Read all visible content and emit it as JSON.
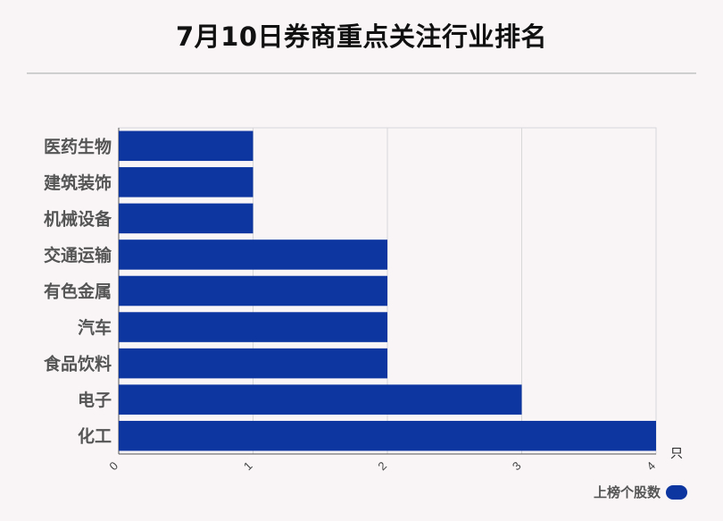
{
  "chart_data": {
    "type": "bar",
    "orientation": "horizontal",
    "title": "7月10日券商重点关注行业排名",
    "categories": [
      "医药生物",
      "建筑装饰",
      "机械设备",
      "交通运输",
      "有色金属",
      "汽车",
      "食品饮料",
      "电子",
      "化工"
    ],
    "series": [
      {
        "name": "上榜个股数",
        "values": [
          1,
          1,
          1,
          2,
          2,
          2,
          2,
          3,
          4
        ]
      }
    ],
    "xlim": [
      0,
      4
    ],
    "xticks": [
      "0",
      "1",
      "2",
      "3",
      "4"
    ],
    "x_unit": "只",
    "grid": true,
    "legend_position": "bottom-right",
    "bar_color": "#0e36a0"
  }
}
